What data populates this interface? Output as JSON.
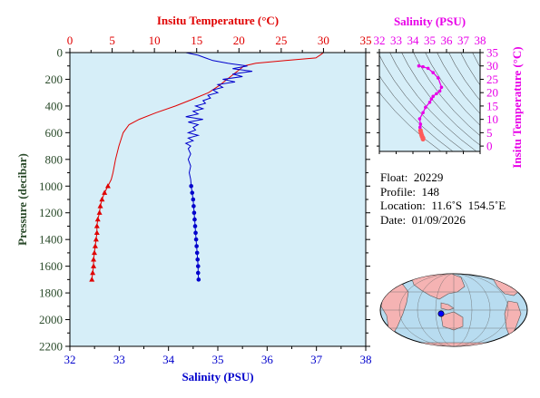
{
  "chart_data": [
    {
      "type": "line",
      "title": "",
      "axes": {
        "top": {
          "label": "Insitu Temperature (°C)",
          "range": [
            0,
            35
          ],
          "ticks": [
            "0",
            "5",
            "10",
            "15",
            "20",
            "25",
            "30",
            "35"
          ],
          "color": "#e00000"
        },
        "bottom": {
          "label": "Salinity (PSU)",
          "range": [
            32,
            38
          ],
          "ticks": [
            "32",
            "33",
            "34",
            "35",
            "36",
            "37",
            "38"
          ],
          "color": "#0000cc"
        },
        "left": {
          "label": "Pressure (decibar)",
          "range": [
            0,
            2200
          ],
          "inverted": true,
          "ticks": [
            "0",
            "200",
            "400",
            "600",
            "800",
            "1000",
            "1200",
            "1400",
            "1600",
            "1800",
            "2000",
            "2200"
          ],
          "color": "#2a4a2a"
        }
      },
      "background": "#d6eef8",
      "series": [
        {
          "axis": "top",
          "color": "#e00000",
          "marker_from_pressure": 1000,
          "points": [
            [
              30.0,
              0
            ],
            [
              29.7,
              15
            ],
            [
              29.1,
              40
            ],
            [
              25.5,
              60
            ],
            [
              22.0,
              80
            ],
            [
              20.6,
              100
            ],
            [
              19.6,
              150
            ],
            [
              18.6,
              200
            ],
            [
              17.6,
              250
            ],
            [
              16.4,
              300
            ],
            [
              14.5,
              350
            ],
            [
              12.5,
              400
            ],
            [
              10.2,
              450
            ],
            [
              8.2,
              500
            ],
            [
              7.0,
              540
            ],
            [
              6.3,
              600
            ],
            [
              5.8,
              700
            ],
            [
              5.4,
              800
            ],
            [
              5.1,
              900
            ],
            [
              4.9,
              950
            ],
            [
              4.5,
              1000
            ],
            [
              4.1,
              1050
            ],
            [
              3.8,
              1100
            ],
            [
              3.6,
              1150
            ],
            [
              3.5,
              1200
            ],
            [
              3.3,
              1250
            ],
            [
              3.2,
              1300
            ],
            [
              3.2,
              1350
            ],
            [
              3.1,
              1400
            ],
            [
              3.0,
              1450
            ],
            [
              2.9,
              1500
            ],
            [
              2.8,
              1550
            ],
            [
              2.8,
              1600
            ],
            [
              2.7,
              1650
            ],
            [
              2.6,
              1700
            ]
          ]
        },
        {
          "axis": "bottom",
          "color": "#0000cc",
          "marker_from_pressure": 1000,
          "points": [
            [
              34.35,
              0
            ],
            [
              34.6,
              20
            ],
            [
              34.75,
              40
            ],
            [
              34.9,
              60
            ],
            [
              35.2,
              80
            ],
            [
              35.6,
              100
            ],
            [
              35.3,
              120
            ],
            [
              35.7,
              140
            ],
            [
              35.3,
              160
            ],
            [
              35.5,
              180
            ],
            [
              35.1,
              200
            ],
            [
              35.35,
              220
            ],
            [
              35.0,
              240
            ],
            [
              35.1,
              260
            ],
            [
              34.9,
              280
            ],
            [
              35.0,
              300
            ],
            [
              34.8,
              320
            ],
            [
              34.85,
              340
            ],
            [
              34.7,
              360
            ],
            [
              34.75,
              380
            ],
            [
              34.55,
              400
            ],
            [
              34.7,
              420
            ],
            [
              34.5,
              440
            ],
            [
              34.6,
              460
            ],
            [
              34.35,
              480
            ],
            [
              34.7,
              500
            ],
            [
              34.4,
              520
            ],
            [
              34.6,
              540
            ],
            [
              34.5,
              560
            ],
            [
              34.55,
              580
            ],
            [
              34.4,
              600
            ],
            [
              34.6,
              620
            ],
            [
              34.4,
              640
            ],
            [
              34.5,
              660
            ],
            [
              34.35,
              680
            ],
            [
              34.45,
              700
            ],
            [
              34.4,
              720
            ],
            [
              34.45,
              760
            ],
            [
              34.4,
              800
            ],
            [
              34.45,
              850
            ],
            [
              34.42,
              900
            ],
            [
              34.45,
              950
            ],
            [
              34.46,
              1000
            ],
            [
              34.48,
              1050
            ],
            [
              34.5,
              1100
            ],
            [
              34.51,
              1150
            ],
            [
              34.52,
              1200
            ],
            [
              34.53,
              1250
            ],
            [
              34.54,
              1300
            ],
            [
              34.55,
              1350
            ],
            [
              34.56,
              1400
            ],
            [
              34.57,
              1450
            ],
            [
              34.58,
              1500
            ],
            [
              34.59,
              1550
            ],
            [
              34.6,
              1600
            ],
            [
              34.6,
              1650
            ],
            [
              34.61,
              1700
            ]
          ]
        }
      ]
    },
    {
      "type": "scatter",
      "title": "",
      "xlabel": "Salinity (PSU)",
      "ylabel": "Insitu Temperature (°C)",
      "xlim": [
        32,
        38
      ],
      "ylim": [
        -2,
        35
      ],
      "xticks": [
        "32",
        "33",
        "34",
        "35",
        "36",
        "37",
        "38"
      ],
      "yticks": [
        "0",
        "5",
        "10",
        "15",
        "20",
        "25",
        "30",
        "35"
      ],
      "color": "#e800e8",
      "points": [
        [
          34.6,
          2.6
        ],
        [
          34.6,
          3.0
        ],
        [
          34.55,
          3.5
        ],
        [
          34.52,
          4.1
        ],
        [
          34.48,
          4.9
        ],
        [
          34.45,
          5.8
        ],
        [
          34.42,
          7.0
        ],
        [
          34.45,
          8.2
        ],
        [
          34.4,
          10.2
        ],
        [
          34.6,
          12.5
        ],
        [
          34.75,
          14.5
        ],
        [
          35.0,
          16.4
        ],
        [
          35.1,
          17.6
        ],
        [
          35.2,
          18.6
        ],
        [
          35.4,
          19.6
        ],
        [
          35.6,
          20.6
        ],
        [
          35.7,
          22.0
        ],
        [
          35.5,
          25.5
        ],
        [
          35.2,
          27.5
        ],
        [
          34.9,
          29.1
        ],
        [
          34.6,
          29.7
        ],
        [
          34.35,
          30.0
        ]
      ]
    }
  ],
  "info": {
    "float": "Float:  20229",
    "profile": "Profile:  148",
    "location": "Location:  11.6˚S  154.5˚E",
    "date": "Date:  01/09/2026"
  },
  "map": {
    "ocean_color": "#b8dcf0",
    "land_color": "#f5b3b3",
    "marker_color": "#0000ff"
  }
}
